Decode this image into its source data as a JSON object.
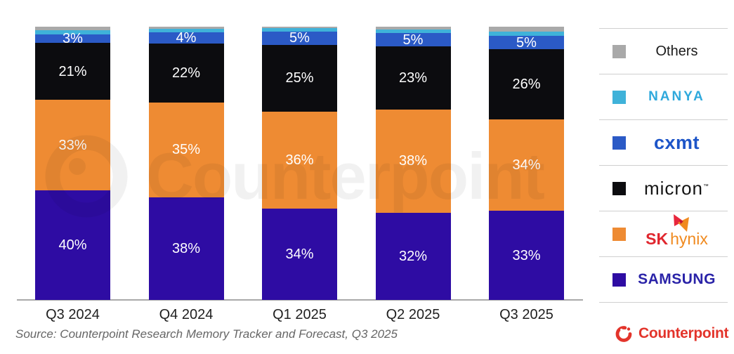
{
  "chart_data": {
    "type": "bar",
    "stacked": true,
    "title": "",
    "categories": [
      "Q3 2024",
      "Q4 2024",
      "Q1 2025",
      "Q2 2025",
      "Q3 2025"
    ],
    "series": [
      {
        "name": "Samsung",
        "color": "#2e0ca3",
        "values": [
          40,
          38,
          34,
          32,
          33
        ],
        "labels": [
          "40%",
          "38%",
          "34%",
          "32%",
          "33%"
        ]
      },
      {
        "name": "SK hynix",
        "color": "#ee8b33",
        "values": [
          33,
          35,
          36,
          38,
          34
        ],
        "labels": [
          "33%",
          "35%",
          "36%",
          "38%",
          "34%"
        ]
      },
      {
        "name": "Micron",
        "color": "#0c0c0f",
        "values": [
          21,
          22,
          25,
          23,
          26
        ],
        "labels": [
          "21%",
          "22%",
          "25%",
          "23%",
          "26%"
        ]
      },
      {
        "name": "CXMT",
        "color": "#2b5ac6",
        "values": [
          3,
          4,
          5,
          5,
          5
        ],
        "labels": [
          "3%",
          "4%",
          "5%",
          "5%",
          "5%"
        ]
      },
      {
        "name": "Nanya",
        "color": "#3fb2d9",
        "values": [
          1.5,
          1.3,
          1.2,
          1.3,
          1.5
        ],
        "labels": [
          "",
          "",
          "",
          "",
          ""
        ]
      },
      {
        "name": "Others",
        "color": "#a9a9a9",
        "values": [
          1.3,
          0.8,
          0.5,
          1.0,
          1.9
        ],
        "labels": [
          "",
          "",
          "",
          "",
          ""
        ]
      }
    ],
    "stack_order_bottom_to_top": [
      "Samsung",
      "SK hynix",
      "Micron",
      "CXMT",
      "Nanya",
      "Others"
    ],
    "ylim": [
      0,
      100
    ],
    "grid": false,
    "legend_position": "right",
    "value_label_color": "#ffffff"
  },
  "legend": {
    "items": [
      {
        "label": "Others",
        "swatch": "#a9a9a9",
        "text_color": "#1a1a1a"
      },
      {
        "label": "NANYA",
        "swatch": "#3fb2d9",
        "text_color": "#2fa9dc"
      },
      {
        "label": "cxmt",
        "swatch": "#2b5ac6",
        "text_color": "#1d55c8"
      },
      {
        "label": "micron",
        "swatch": "#0c0c0f",
        "text_color": "#141414",
        "tm": "™"
      },
      {
        "label_sk": "SK",
        "label_hynix": "hynix",
        "swatch": "#ee8b33",
        "sk_color": "#e0262e",
        "hynix_color": "#f08a1f"
      },
      {
        "label": "SAMSUNG",
        "swatch": "#2e0ca3",
        "text_color": "#2a23a8"
      }
    ]
  },
  "watermark": {
    "text": "Counterpoint"
  },
  "source": {
    "text": "Source: Counterpoint Research Memory Tracker and Forecast, Q3 2025"
  },
  "branding": {
    "logo_text": "Counterpoint",
    "color": "#e3342b"
  }
}
